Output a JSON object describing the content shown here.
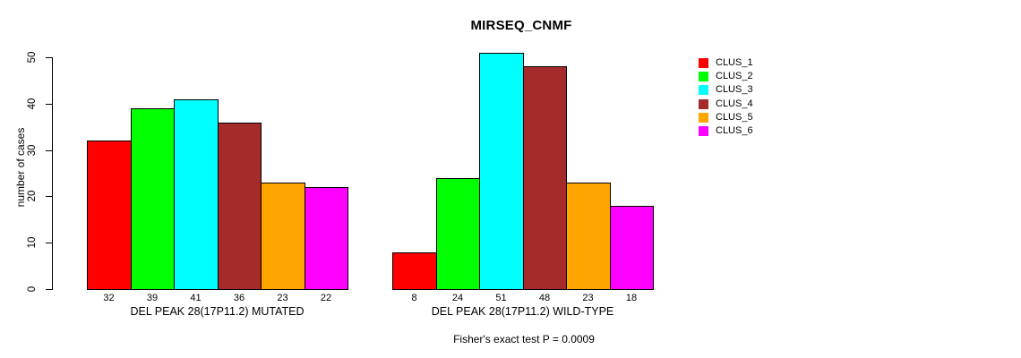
{
  "figure": {
    "background": "#FFFFFF"
  },
  "chart_data": {
    "type": "bar",
    "title": "MIRSEQ_CNMF",
    "ylabel": "number of cases",
    "xlabel": "",
    "ylim": [
      0,
      50
    ],
    "yticks": [
      0,
      10,
      20,
      30,
      40,
      50
    ],
    "grid": false,
    "legend_position": "right",
    "bar_value_labels": true,
    "categories": [
      "DEL PEAK 28(17P11.2) MUTATED",
      "DEL PEAK 28(17P11.2) WILD-TYPE"
    ],
    "series": [
      {
        "name": "CLUS_1",
        "color": "#FF0000",
        "values": [
          32,
          8
        ]
      },
      {
        "name": "CLUS_2",
        "color": "#00FF00",
        "values": [
          39,
          24
        ]
      },
      {
        "name": "CLUS_3",
        "color": "#00FFFF",
        "values": [
          41,
          51
        ]
      },
      {
        "name": "CLUS_4",
        "color": "#A52A2A",
        "values": [
          36,
          48
        ]
      },
      {
        "name": "CLUS_5",
        "color": "#FFA500",
        "values": [
          23,
          23
        ]
      },
      {
        "name": "CLUS_6",
        "color": "#FF00FF",
        "values": [
          22,
          18
        ]
      }
    ],
    "annotation": "Fisher's exact test P = 0.0009"
  }
}
